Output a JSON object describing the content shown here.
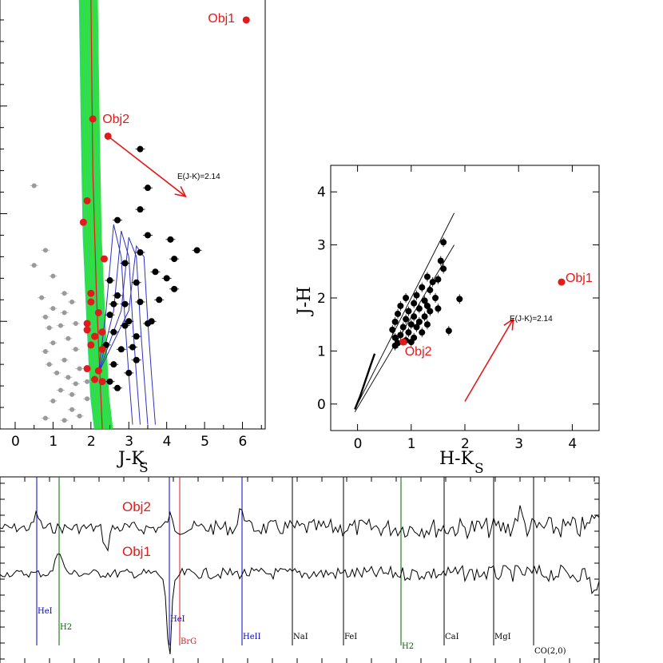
{
  "chart_data": [
    {
      "type": "scatter",
      "xlabel": "J-K",
      "xlabel_sub": "S",
      "x_ticks": [
        "0",
        "1",
        "2",
        "3",
        "4",
        "5",
        "6"
      ],
      "xlim": [
        -0.4,
        6.6
      ],
      "ylim": [
        0,
        20
      ],
      "arrow_label": "E(J-K)=2.14",
      "arrow": {
        "from": [
          2.45,
          13.6
        ],
        "to": [
          4.5,
          10.8
        ]
      },
      "grey_points": [
        [
          0.5,
          11.3
        ],
        [
          0.8,
          8.3
        ],
        [
          0.5,
          7.6
        ],
        [
          1.0,
          7.1
        ],
        [
          0.7,
          6.1
        ],
        [
          1.3,
          6.3
        ],
        [
          0.8,
          5.2
        ],
        [
          1.0,
          5.6
        ],
        [
          1.3,
          5.4
        ],
        [
          1.5,
          5.9
        ],
        [
          1.2,
          4.8
        ],
        [
          0.9,
          4.7
        ],
        [
          1.6,
          4.9
        ],
        [
          1.0,
          4.0
        ],
        [
          1.4,
          4.2
        ],
        [
          0.8,
          3.6
        ],
        [
          1.3,
          3.2
        ],
        [
          1.6,
          3.7
        ],
        [
          1.1,
          2.6
        ],
        [
          1.4,
          2.4
        ],
        [
          1.7,
          2.8
        ],
        [
          1.2,
          1.8
        ],
        [
          1.5,
          1.6
        ],
        [
          1.0,
          1.3
        ],
        [
          1.5,
          0.9
        ],
        [
          1.9,
          1.4
        ],
        [
          0.8,
          0.5
        ],
        [
          1.3,
          0.4
        ],
        [
          1.7,
          0.6
        ],
        [
          1.6,
          2.1
        ],
        [
          1.9,
          2.2
        ],
        [
          0.9,
          3.0
        ]
      ],
      "black_points": [
        [
          3.3,
          13.0
        ],
        [
          3.5,
          11.2
        ],
        [
          3.3,
          10.2
        ],
        [
          2.7,
          9.7
        ],
        [
          3.5,
          9.0
        ],
        [
          4.1,
          8.8
        ],
        [
          3.3,
          8.2
        ],
        [
          4.2,
          7.9
        ],
        [
          2.9,
          7.7
        ],
        [
          3.7,
          7.3
        ],
        [
          4.0,
          7.0
        ],
        [
          3.2,
          6.8
        ],
        [
          2.5,
          6.9
        ],
        [
          2.7,
          6.2
        ],
        [
          2.9,
          5.8
        ],
        [
          3.3,
          5.9
        ],
        [
          4.2,
          6.5
        ],
        [
          4.8,
          8.3
        ],
        [
          3.8,
          6.0
        ],
        [
          2.5,
          5.3
        ],
        [
          3.0,
          5.0
        ],
        [
          3.5,
          4.9
        ],
        [
          2.6,
          4.5
        ],
        [
          3.2,
          4.3
        ],
        [
          2.4,
          3.9
        ],
        [
          2.8,
          3.7
        ],
        [
          3.2,
          3.2
        ],
        [
          2.6,
          3.0
        ],
        [
          3.0,
          2.6
        ],
        [
          2.5,
          2.2
        ],
        [
          2.7,
          1.9
        ],
        [
          2.9,
          4.8
        ],
        [
          3.6,
          5.0
        ],
        [
          2.6,
          5.8
        ],
        [
          3.1,
          3.8
        ]
      ],
      "red_points": [
        {
          "x": 6.1,
          "y": 19.0,
          "label": "Obj1"
        },
        {
          "x": 2.05,
          "y": 14.4,
          "label": "Obj2"
        },
        {
          "x": 2.45,
          "y": 13.6,
          "label": ""
        },
        {
          "x": 1.9,
          "y": 10.6,
          "label": ""
        },
        {
          "x": 1.8,
          "y": 9.6,
          "label": ""
        },
        {
          "x": 2.35,
          "y": 7.9,
          "label": ""
        },
        {
          "x": 2.0,
          "y": 6.3,
          "label": ""
        },
        {
          "x": 2.0,
          "y": 5.9,
          "label": ""
        },
        {
          "x": 2.2,
          "y": 5.4,
          "label": ""
        },
        {
          "x": 1.9,
          "y": 4.9,
          "label": ""
        },
        {
          "x": 1.9,
          "y": 4.6,
          "label": ""
        },
        {
          "x": 2.1,
          "y": 4.3,
          "label": ""
        },
        {
          "x": 2.3,
          "y": 4.5,
          "label": ""
        },
        {
          "x": 2.0,
          "y": 3.9,
          "label": ""
        },
        {
          "x": 2.3,
          "y": 3.7,
          "label": ""
        },
        {
          "x": 1.9,
          "y": 2.8,
          "label": ""
        },
        {
          "x": 2.2,
          "y": 2.7,
          "label": ""
        },
        {
          "x": 2.1,
          "y": 2.3,
          "label": ""
        },
        {
          "x": 2.3,
          "y": 2.2,
          "label": ""
        }
      ]
    },
    {
      "type": "scatter",
      "xlabel": "H-K",
      "xlabel_sub": "S",
      "ylabel": "J-H",
      "x_ticks": [
        "0",
        "1",
        "2",
        "3",
        "4"
      ],
      "y_ticks": [
        "0",
        "1",
        "2",
        "3",
        "4"
      ],
      "xlim": [
        -0.5,
        4.5
      ],
      "ylim": [
        -0.5,
        4.5
      ],
      "arrow_label": "E(J-K)=2.14",
      "arrow": {
        "from": [
          2.0,
          0.05
        ],
        "to": [
          2.9,
          1.6
        ]
      },
      "red_points": [
        {
          "x": 3.8,
          "y": 2.3,
          "label": "Obj1"
        },
        {
          "x": 0.85,
          "y": 1.17,
          "label": "Obj2"
        }
      ],
      "black_points": [
        [
          1.6,
          3.05
        ],
        [
          1.55,
          2.7
        ],
        [
          1.6,
          2.55
        ],
        [
          1.3,
          2.4
        ],
        [
          1.4,
          2.3
        ],
        [
          1.5,
          2.35
        ],
        [
          1.2,
          2.2
        ],
        [
          1.35,
          2.15
        ],
        [
          1.1,
          2.05
        ],
        [
          0.9,
          2.0
        ],
        [
          1.25,
          1.95
        ],
        [
          1.45,
          2.0
        ],
        [
          1.05,
          1.9
        ],
        [
          1.3,
          1.85
        ],
        [
          0.8,
          1.85
        ],
        [
          1.15,
          1.8
        ],
        [
          0.95,
          1.75
        ],
        [
          1.35,
          1.75
        ],
        [
          1.5,
          1.8
        ],
        [
          0.75,
          1.7
        ],
        [
          1.05,
          1.65
        ],
        [
          1.25,
          1.65
        ],
        [
          0.9,
          1.6
        ],
        [
          1.15,
          1.55
        ],
        [
          0.7,
          1.55
        ],
        [
          1.0,
          1.5
        ],
        [
          1.3,
          1.5
        ],
        [
          0.85,
          1.45
        ],
        [
          1.1,
          1.45
        ],
        [
          0.65,
          1.4
        ],
        [
          0.95,
          1.35
        ],
        [
          1.2,
          1.35
        ],
        [
          0.8,
          1.3
        ],
        [
          1.05,
          1.25
        ],
        [
          0.7,
          1.25
        ],
        [
          0.9,
          1.2
        ],
        [
          0.75,
          1.15
        ],
        [
          1.0,
          1.17
        ],
        [
          1.9,
          1.98
        ],
        [
          1.7,
          1.38
        ],
        [
          0.7,
          1.1
        ]
      ]
    },
    {
      "type": "line",
      "series": [
        {
          "name": "Obj2"
        },
        {
          "name": "Obj1"
        }
      ],
      "lines": [
        {
          "label": "HeI",
          "color": "#0000cc",
          "x": 46
        },
        {
          "label": "H2",
          "color": "#006600",
          "x": 74
        },
        {
          "label": "HeI",
          "color": "#0000cc",
          "x": 212
        },
        {
          "label": "BrG",
          "color": "#e31a1c",
          "x": 225
        },
        {
          "label": "HeII",
          "color": "#0000cc",
          "x": 303
        },
        {
          "label": "NaI",
          "color": "#000000",
          "x": 366
        },
        {
          "label": "FeI",
          "color": "#000000",
          "x": 430
        },
        {
          "label": "H2",
          "color": "#006600",
          "x": 502
        },
        {
          "label": "CaI",
          "color": "#000000",
          "x": 556
        },
        {
          "label": "MgI",
          "color": "#000000",
          "x": 618
        },
        {
          "label": "CO(2,0)",
          "color": "#000000",
          "x": 668
        }
      ]
    }
  ]
}
